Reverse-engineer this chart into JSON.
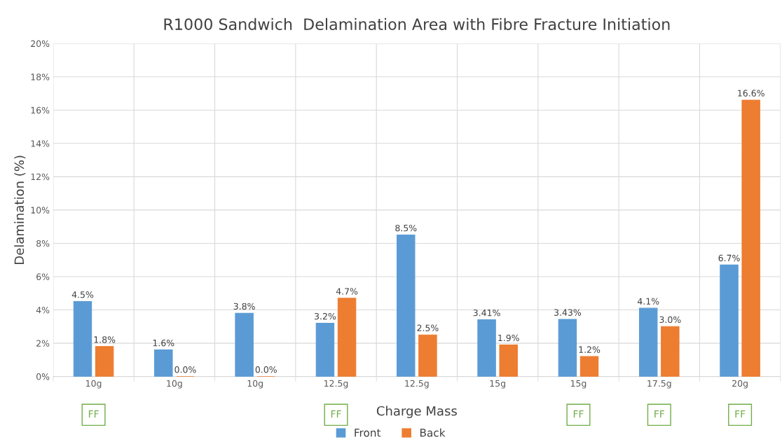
{
  "chart_data": {
    "type": "bar",
    "title": "R1000 Sandwich  Delamination Area with Fibre Fracture Initiation",
    "xlabel": "Charge Mass",
    "ylabel": "Delamination (%)",
    "categories": [
      "10g\nFF",
      "10g",
      "10g",
      "12.5g\nFF",
      "12.5g",
      "15g",
      "15g\nFF",
      "17.5g\nFF",
      "20g\nFF"
    ],
    "series": [
      {
        "name": "Front",
        "color": "#5b9bd5",
        "values": [
          4.5,
          1.6,
          3.8,
          3.2,
          8.5,
          3.41,
          3.43,
          4.1,
          6.7
        ],
        "value_labels": [
          "4.5%",
          "1.6%",
          "3.8%",
          "3.2%",
          "8.5%",
          "3.41%",
          "3.43%",
          "4.1%",
          "6.7%"
        ]
      },
      {
        "name": "Back",
        "color": "#ed7d31",
        "values": [
          1.8,
          0.0,
          0.0,
          4.7,
          2.5,
          1.9,
          1.2,
          3.0,
          16.6
        ],
        "value_labels": [
          "1.8%",
          "0.0%",
          "0.0%",
          "4.7%",
          "2.5%",
          "1.9%",
          "1.2%",
          "3.0%",
          "16.6%"
        ]
      }
    ],
    "ylim": [
      0,
      20
    ],
    "yticks": [
      {
        "value": 0,
        "label": "0%"
      },
      {
        "value": 2,
        "label": "2%"
      },
      {
        "value": 4,
        "label": "4%"
      },
      {
        "value": 6,
        "label": "6%"
      },
      {
        "value": 8,
        "label": "8%"
      },
      {
        "value": 10,
        "label": "10%"
      },
      {
        "value": 12,
        "label": "12%"
      },
      {
        "value": 14,
        "label": "14%"
      },
      {
        "value": 16,
        "label": "16%"
      },
      {
        "value": 18,
        "label": "18%"
      },
      {
        "value": 20,
        "label": "20%"
      }
    ],
    "grid": true,
    "legend": "bottom"
  }
}
